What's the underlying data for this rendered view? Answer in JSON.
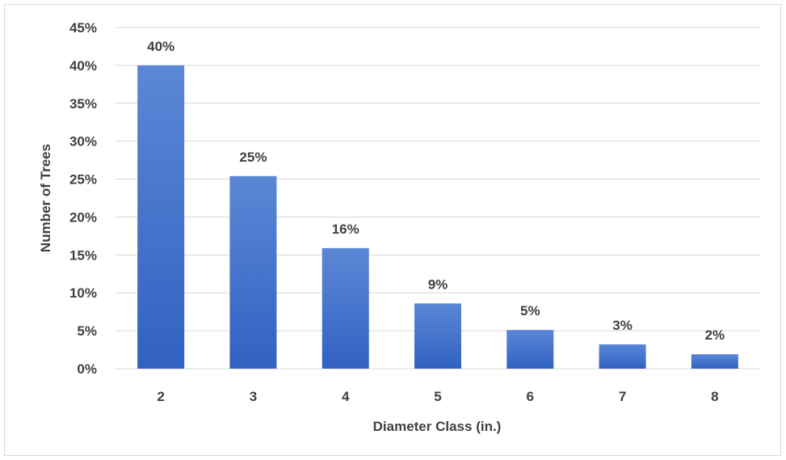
{
  "chart_data": {
    "type": "bar",
    "title": "",
    "xlabel": "Diameter Class (in.)",
    "ylabel": "Number of Trees",
    "categories": [
      "2",
      "3",
      "4",
      "5",
      "6",
      "7",
      "8"
    ],
    "values": [
      40.0,
      25.4,
      15.9,
      8.6,
      5.1,
      3.2,
      1.9
    ],
    "data_labels": [
      "40%",
      "25%",
      "16%",
      "9%",
      "5%",
      "3%",
      "2%"
    ],
    "ylim": [
      0,
      45
    ],
    "yticks": [
      0,
      5,
      10,
      15,
      20,
      25,
      30,
      35,
      40,
      45
    ],
    "ytick_labels": [
      "0%",
      "5%",
      "10%",
      "15%",
      "20%",
      "25%",
      "30%",
      "35%",
      "40%",
      "45%"
    ],
    "grid": true,
    "legend": "none",
    "colors": {
      "bar_top": "#5b87d6",
      "bar_bottom": "#3162c2",
      "text": "#404040",
      "grid": "#d9d9d9"
    }
  }
}
